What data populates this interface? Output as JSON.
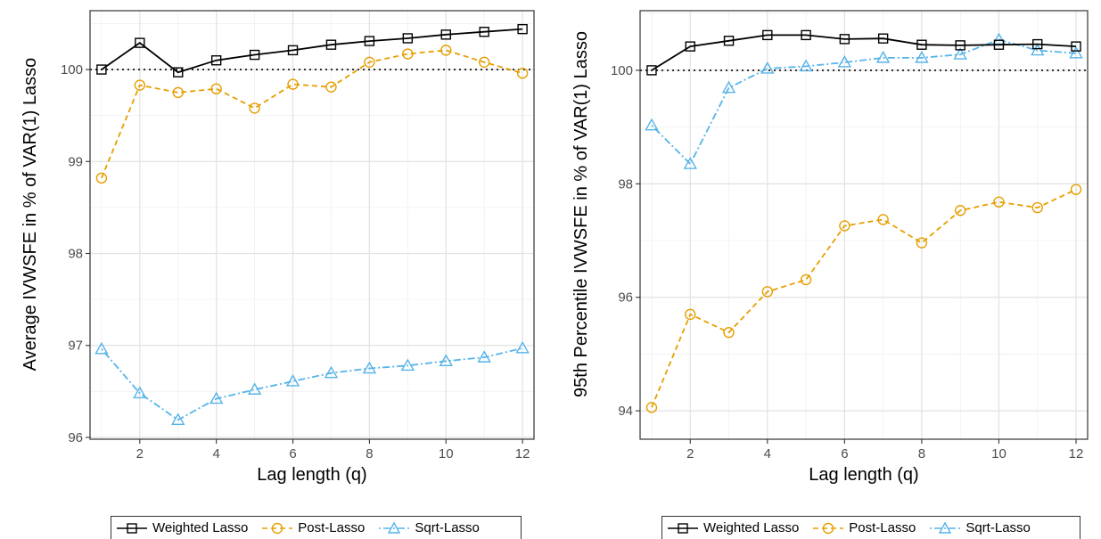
{
  "legend": [
    {
      "name": "Weighted Lasso",
      "color": "#000000",
      "marker": "square",
      "dash": "solid"
    },
    {
      "name": "Post-Lasso",
      "color": "#E69F00",
      "marker": "circle",
      "dash": "dashed"
    },
    {
      "name": "Sqrt-Lasso",
      "color": "#56B4E9",
      "marker": "triangle",
      "dash": "dotdash"
    }
  ],
  "chart_data": [
    {
      "type": "line",
      "title": "",
      "xlabel": "Lag length (q)",
      "ylabel": "Average IVWSFE in % of VAR(1) Lasso",
      "x": [
        1,
        2,
        3,
        4,
        5,
        6,
        7,
        8,
        9,
        10,
        11,
        12
      ],
      "xticks": [
        2,
        4,
        6,
        8,
        10,
        12
      ],
      "yticks": [
        96,
        97,
        98,
        99,
        100
      ],
      "xlim": [
        0.7,
        12.3
      ],
      "ylim": [
        95.98,
        100.64
      ],
      "reference_line": 100,
      "grid": true,
      "legend_position": "bottom",
      "series": [
        {
          "name": "Weighted Lasso",
          "values": [
            100.0,
            100.29,
            99.97,
            100.1,
            100.16,
            100.21,
            100.27,
            100.31,
            100.34,
            100.38,
            100.41,
            100.44
          ]
        },
        {
          "name": "Post-Lasso",
          "values": [
            98.82,
            99.83,
            99.75,
            99.79,
            99.58,
            99.84,
            99.81,
            100.08,
            100.17,
            100.21,
            100.08,
            99.96
          ]
        },
        {
          "name": "Sqrt-Lasso",
          "values": [
            96.96,
            96.48,
            96.19,
            96.42,
            96.52,
            96.61,
            96.7,
            96.75,
            96.78,
            96.83,
            96.87,
            96.97
          ]
        }
      ]
    },
    {
      "type": "line",
      "title": "",
      "xlabel": "Lag length (q)",
      "ylabel": "95th Percentile IVWSFE in % of VAR(1) Lasso",
      "x": [
        1,
        2,
        3,
        4,
        5,
        6,
        7,
        8,
        9,
        10,
        11,
        12
      ],
      "xticks": [
        2,
        4,
        6,
        8,
        10,
        12
      ],
      "yticks": [
        94,
        96,
        98,
        100
      ],
      "xlim": [
        0.7,
        12.3
      ],
      "ylim": [
        93.5,
        101.05
      ],
      "reference_line": 100,
      "grid": true,
      "legend_position": "bottom",
      "series": [
        {
          "name": "Weighted Lasso",
          "values": [
            100.0,
            100.42,
            100.52,
            100.62,
            100.62,
            100.55,
            100.56,
            100.45,
            100.44,
            100.45,
            100.46,
            100.42
          ]
        },
        {
          "name": "Post-Lasso",
          "values": [
            94.06,
            95.7,
            95.38,
            96.1,
            96.31,
            97.26,
            97.37,
            96.96,
            97.53,
            97.68,
            97.58,
            97.9
          ]
        },
        {
          "name": "Sqrt-Lasso",
          "values": [
            99.03,
            98.35,
            99.69,
            100.03,
            100.07,
            100.14,
            100.22,
            100.22,
            100.28,
            100.54,
            100.35,
            100.3
          ]
        }
      ]
    }
  ]
}
